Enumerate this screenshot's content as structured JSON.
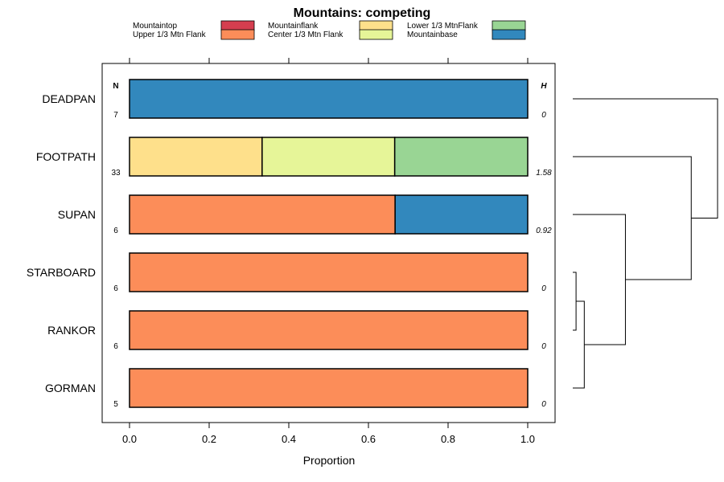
{
  "chart_data": {
    "type": "bar",
    "orientation": "horizontal",
    "stacked": true,
    "title": "Mountains: competing",
    "xlabel": "Proportion",
    "xlim": [
      0,
      1
    ],
    "xticks": [
      "0.0",
      "0.2",
      "0.4",
      "0.6",
      "0.8",
      "1.0"
    ],
    "n_header": "N",
    "h_header": "H",
    "legend": [
      {
        "name": "Mountaintop",
        "color": "#D53E4F"
      },
      {
        "name": "Upper 1/3 Mtn Flank",
        "color": "#FC8D59"
      },
      {
        "name": "Mountainflank",
        "color": "#FEE08B"
      },
      {
        "name": "Center 1/3 Mtn Flank",
        "color": "#E6F598"
      },
      {
        "name": "Lower 1/3 MtnFlank",
        "color": "#99D594"
      },
      {
        "name": "Mountainbase",
        "color": "#3288BD"
      }
    ],
    "categories": [
      "DEADPAN",
      "FOOTPATH",
      "SUPAN",
      "STARBOARD",
      "RANKOR",
      "GORMAN"
    ],
    "n_values": [
      "7",
      "33",
      "6",
      "6",
      "6",
      "5"
    ],
    "h_values": [
      "0",
      "1.58",
      "0.92",
      "0",
      "0",
      "0"
    ],
    "series": [
      {
        "name": "Mountaintop",
        "values": [
          0,
          0,
          0,
          0,
          0,
          0
        ]
      },
      {
        "name": "Upper 1/3 Mtn Flank",
        "values": [
          0,
          0,
          0.667,
          1,
          1,
          1
        ]
      },
      {
        "name": "Mountainflank",
        "values": [
          0,
          0.333,
          0,
          0,
          0,
          0
        ]
      },
      {
        "name": "Center 1/3 Mtn Flank",
        "values": [
          0,
          0.333,
          0,
          0,
          0,
          0
        ]
      },
      {
        "name": "Lower 1/3 MtnFlank",
        "values": [
          0,
          0.334,
          0,
          0,
          0,
          0
        ]
      },
      {
        "name": "Mountainbase",
        "values": [
          1,
          0,
          0.333,
          0,
          0,
          0
        ]
      }
    ],
    "dendrogram": {
      "leaf_order": [
        "DEADPAN",
        "FOOTPATH",
        "SUPAN",
        "STARBOARD",
        "RANKOR",
        "GORMAN"
      ],
      "merges": [
        {
          "left": "STARBOARD",
          "right": "RANKOR",
          "height": 0.02
        },
        {
          "left": "cluster1",
          "right": "GORMAN",
          "height": 0.07
        },
        {
          "left": "SUPAN",
          "right": "cluster2",
          "height": 0.32
        },
        {
          "left": "FOOTPATH",
          "right": "cluster3",
          "height": 0.72
        },
        {
          "left": "DEADPAN",
          "right": "cluster4",
          "height": 0.88
        }
      ]
    }
  }
}
